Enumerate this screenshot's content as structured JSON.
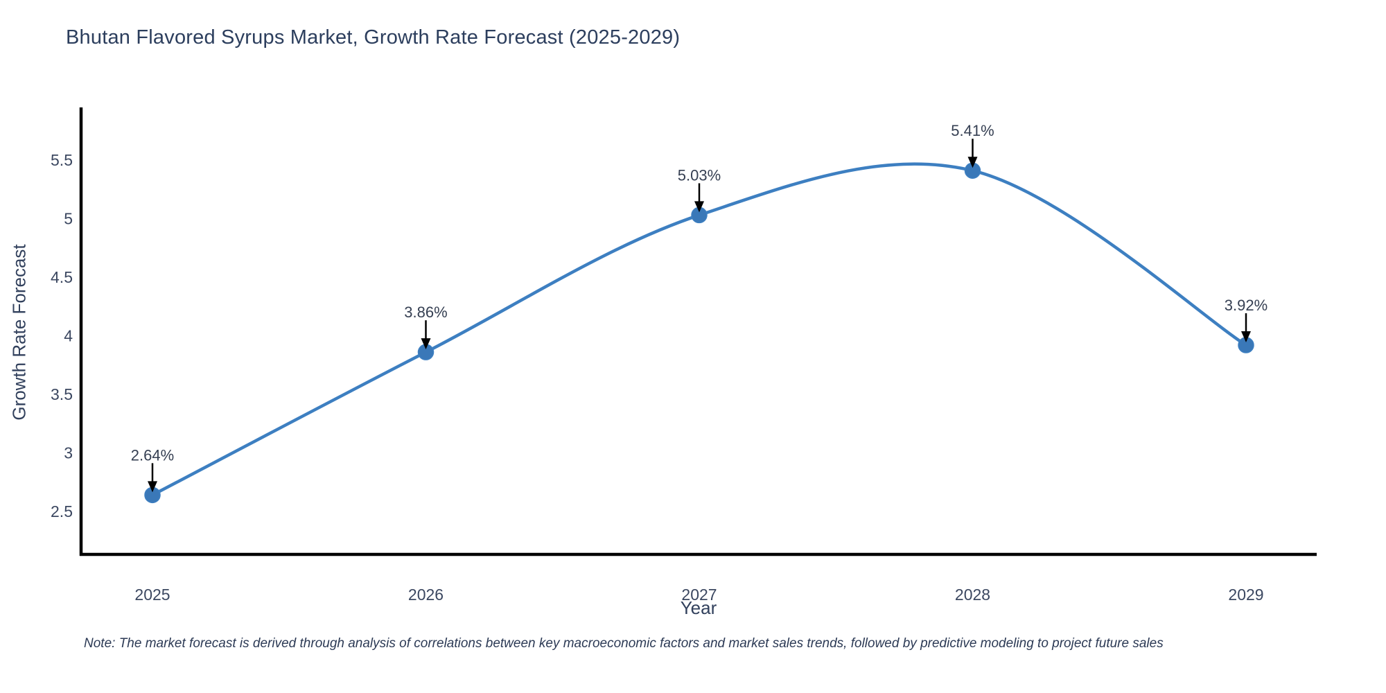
{
  "title": "Bhutan Flavored Syrups Market, Growth Rate Forecast (2025-2029)",
  "note": "Note: The market forecast is derived through analysis of correlations between key macroeconomic factors and market sales trends, followed by predictive modeling to project future sales",
  "chart_data": {
    "type": "line",
    "title": "Bhutan Flavored Syrups Market, Growth Rate Forecast (2025-2029)",
    "xlabel": "Year",
    "ylabel": "Growth Rate Forecast",
    "categories": [
      "2025",
      "2026",
      "2027",
      "2028",
      "2029"
    ],
    "x": [
      2025,
      2026,
      2027,
      2028,
      2029
    ],
    "series": [
      {
        "name": "Growth Rate Forecast",
        "values": [
          2.64,
          3.86,
          5.03,
          5.41,
          3.92
        ]
      }
    ],
    "point_labels": [
      "2.64%",
      "3.86%",
      "5.03%",
      "5.41%",
      "3.92%"
    ],
    "yticks": [
      5.5,
      5,
      4.5,
      4,
      3.5,
      3,
      2.5
    ],
    "ylim": [
      2.13,
      5.95
    ],
    "xlim": [
      2024.74,
      2029.26
    ],
    "grid": false,
    "legend": "none",
    "line_shape": "spline",
    "annotation_style": "value label with down arrow to marker",
    "colors": {
      "line": "#3d7fc1",
      "marker": "#3a78b8",
      "axis": "#000000",
      "arrow": "#000000",
      "tick_text": "#3b4760",
      "title_text": "#2c3e5d",
      "note_text": "#2c3a55"
    }
  }
}
